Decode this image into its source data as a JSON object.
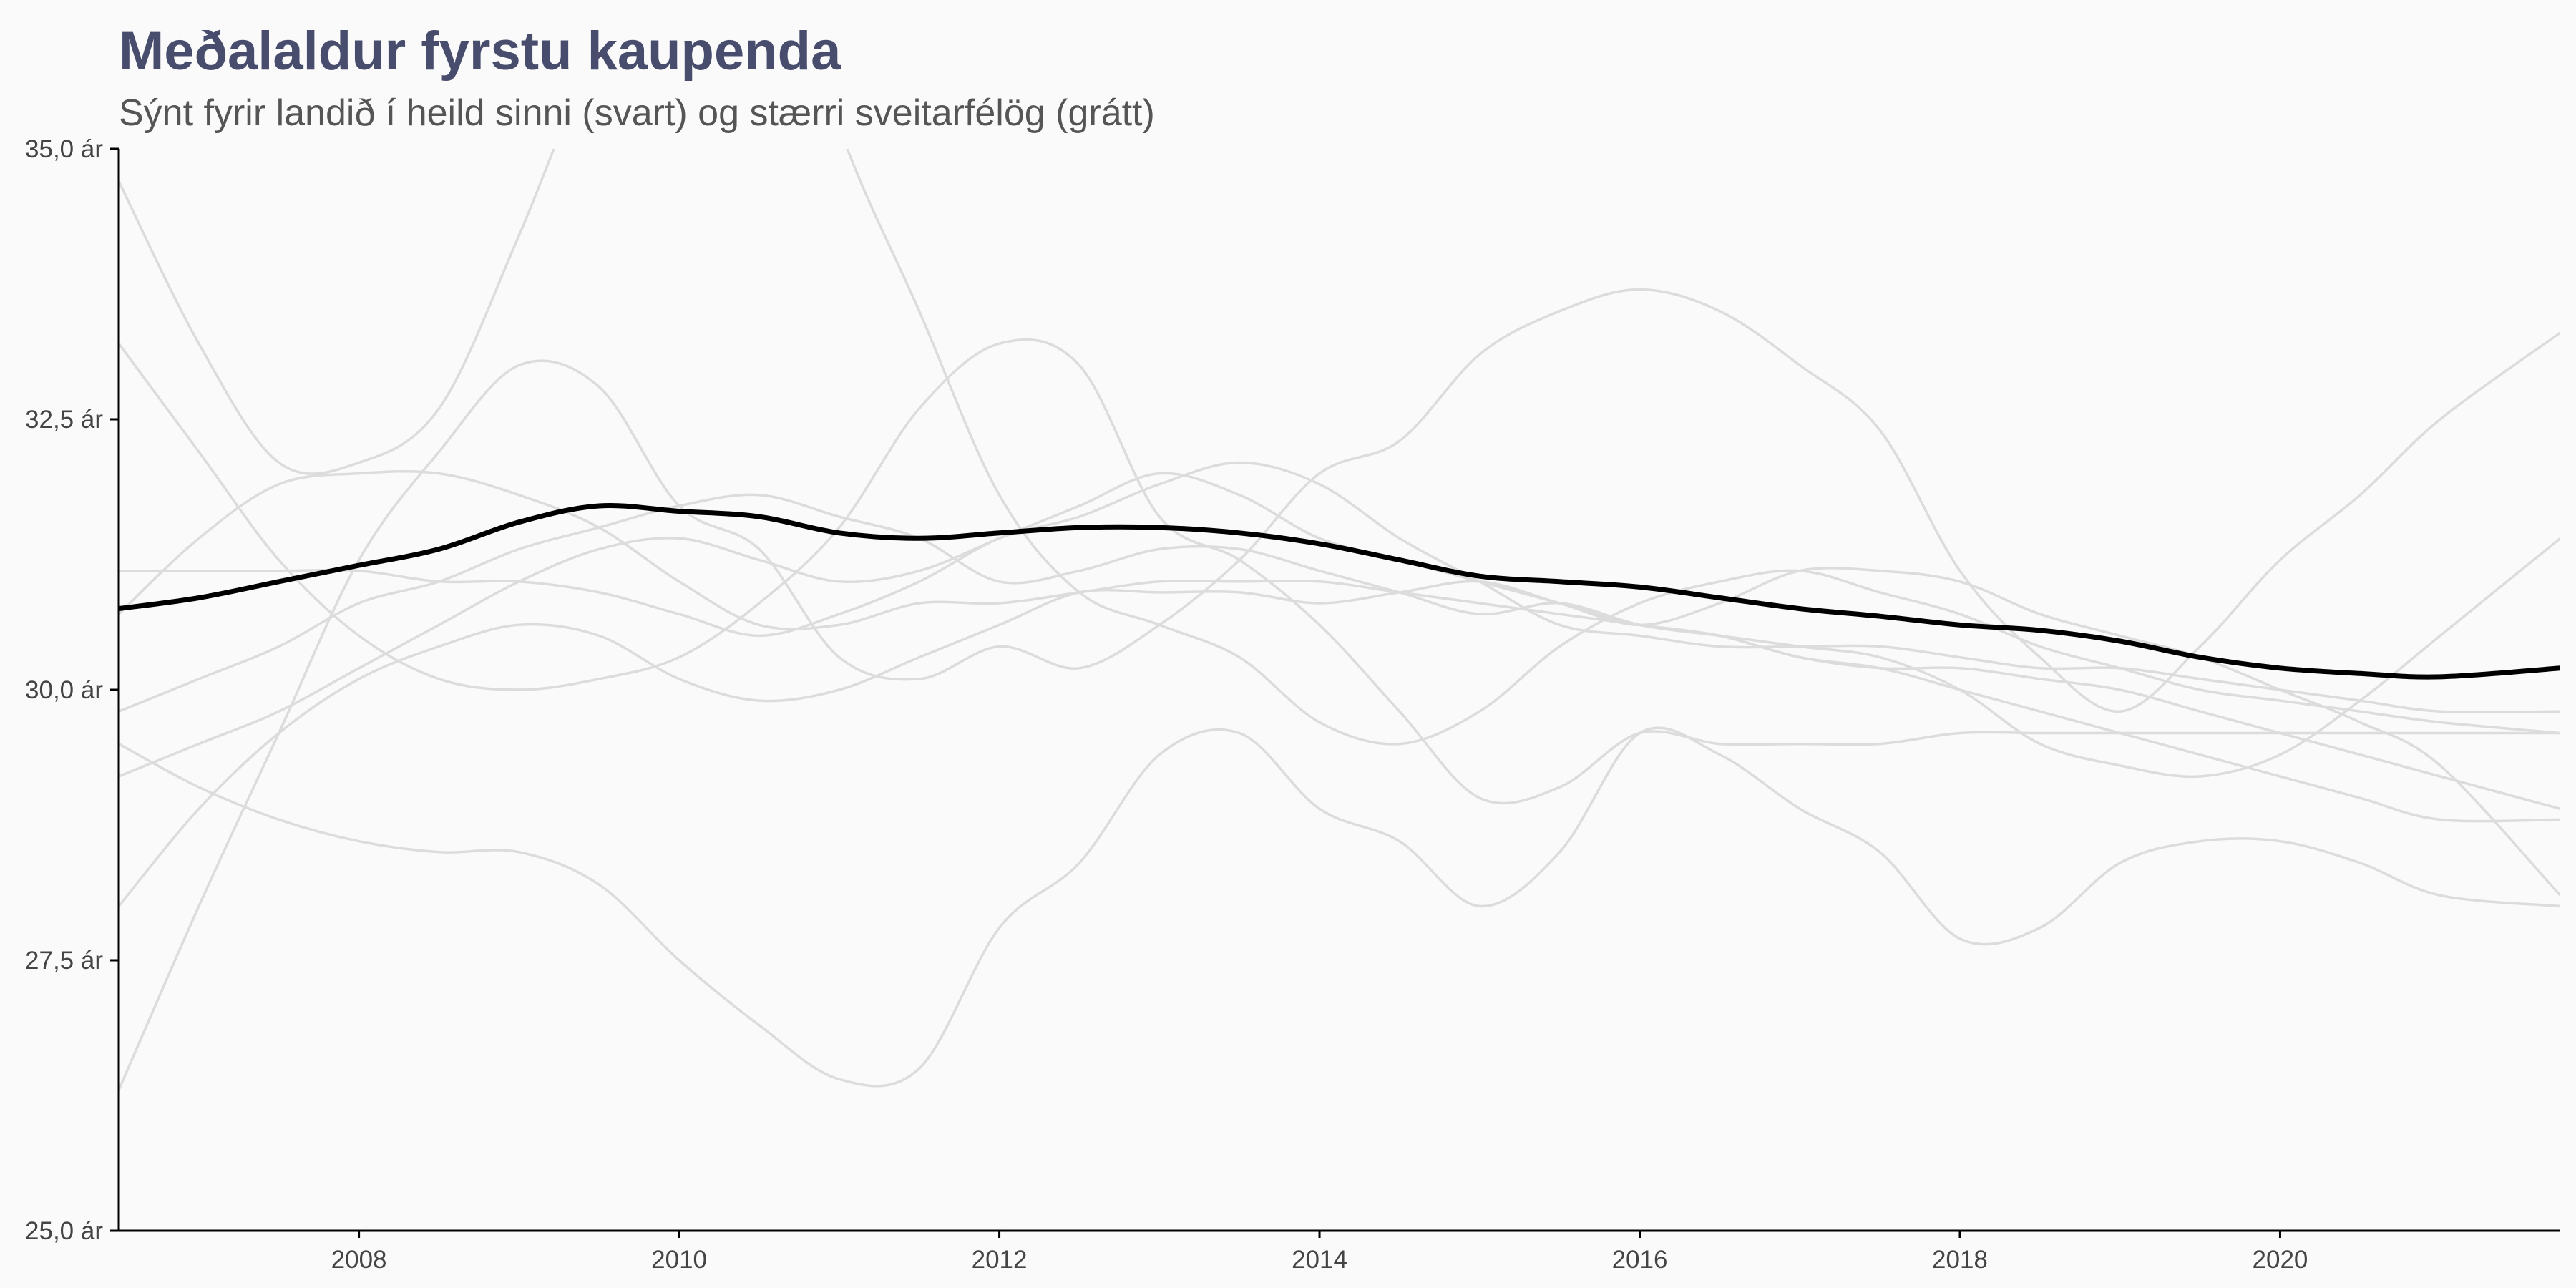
{
  "chart_data": {
    "type": "line",
    "title": "Meðalaldur fyrstu kaupenda",
    "subtitle": "Sýnt fyrir landið í heild sinni (svart) og stærri sveitarfélög (grátt)",
    "xlabel": "",
    "ylabel": "",
    "xlim": [
      2006.5,
      2021.75
    ],
    "ylim": [
      25.0,
      35.0
    ],
    "x_ticks": [
      2008,
      2010,
      2012,
      2014,
      2016,
      2018,
      2020
    ],
    "x_tick_labels": [
      "2008",
      "2010",
      "2012",
      "2014",
      "2016",
      "2018",
      "2020"
    ],
    "y_ticks": [
      25.0,
      27.5,
      30.0,
      32.5,
      35.0
    ],
    "y_tick_labels": [
      "25,0 ár",
      "27,5 ár",
      "30,0 ár",
      "32,5 ár",
      "35,0 ár"
    ],
    "grid": false,
    "colors": {
      "national": "#000000",
      "municipalities": "#dcdcdc",
      "title": "#484D6D",
      "subtitle": "#555555",
      "background": "#fafafa"
    },
    "national": {
      "x": [
        2006.5,
        2007,
        2007.5,
        2008,
        2008.5,
        2009,
        2009.5,
        2010,
        2010.5,
        2011,
        2011.5,
        2012,
        2012.5,
        2013,
        2013.5,
        2014,
        2014.5,
        2015,
        2015.5,
        2016,
        2016.5,
        2017,
        2017.5,
        2018,
        2018.5,
        2019,
        2019.5,
        2020,
        2020.5,
        2021,
        2021.75
      ],
      "y": [
        30.75,
        30.85,
        31.0,
        31.15,
        31.3,
        31.55,
        31.7,
        31.65,
        31.6,
        31.45,
        31.4,
        31.45,
        31.5,
        31.5,
        31.45,
        31.35,
        31.2,
        31.05,
        31.0,
        30.95,
        30.85,
        30.75,
        30.68,
        30.6,
        30.55,
        30.45,
        30.3,
        30.2,
        30.15,
        30.12,
        30.2
      ]
    },
    "municipalities": [
      {
        "x": [
          2006.5,
          2007,
          2007.5,
          2008,
          2008.5,
          2009,
          2009.5,
          2010,
          2010.5,
          2011,
          2011.5,
          2012,
          2012.5,
          2013,
          2013.5,
          2014,
          2014.5,
          2015,
          2015.5,
          2016,
          2016.5,
          2017,
          2017.5,
          2018,
          2018.5,
          2019,
          2019.5,
          2020,
          2020.5,
          2021,
          2021.75
        ],
        "y": [
          34.7,
          33.2,
          32.1,
          32.1,
          32.6,
          34.2,
          36.0,
          37.2,
          37.6,
          35.2,
          33.5,
          31.8,
          30.9,
          30.6,
          30.3,
          29.7,
          29.5,
          29.8,
          30.4,
          30.8,
          31.0,
          31.1,
          30.9,
          30.7,
          30.4,
          30.2,
          30.0,
          29.9,
          29.8,
          29.7,
          29.6
        ]
      },
      {
        "x": [
          2006.5,
          2007,
          2007.5,
          2008,
          2008.5,
          2009,
          2009.5,
          2010,
          2010.5,
          2011,
          2011.5,
          2012,
          2012.5,
          2013,
          2013.5,
          2014,
          2014.5,
          2015,
          2015.5,
          2016,
          2016.5,
          2017,
          2017.5,
          2018,
          2018.5,
          2019,
          2019.5,
          2020,
          2020.5,
          2021,
          2021.75
        ],
        "y": [
          26.3,
          28.0,
          29.6,
          31.2,
          32.2,
          33.0,
          32.8,
          31.7,
          31.3,
          30.3,
          30.1,
          30.4,
          30.2,
          30.6,
          31.2,
          32.0,
          32.3,
          33.1,
          33.5,
          33.7,
          33.5,
          33.0,
          32.4,
          31.1,
          30.3,
          29.8,
          30.4,
          31.2,
          31.8,
          32.5,
          33.3
        ]
      },
      {
        "x": [
          2006.5,
          2007,
          2007.5,
          2008,
          2008.5,
          2009,
          2009.5,
          2010,
          2010.5,
          2011,
          2011.5,
          2012,
          2012.5,
          2013,
          2013.5,
          2014,
          2014.5,
          2015,
          2015.5,
          2016,
          2016.5,
          2017,
          2017.5,
          2018,
          2018.5,
          2019,
          2019.5,
          2020,
          2020.5,
          2021,
          2021.75
        ],
        "y": [
          33.2,
          32.2,
          31.2,
          30.5,
          30.1,
          30.0,
          30.1,
          30.3,
          30.8,
          31.5,
          32.6,
          33.2,
          33.0,
          31.6,
          31.2,
          30.6,
          29.8,
          29.0,
          29.1,
          29.6,
          29.5,
          29.5,
          29.5,
          29.6,
          29.6,
          29.6,
          29.6,
          29.6,
          29.6,
          29.6,
          29.6
        ]
      },
      {
        "x": [
          2006.5,
          2007,
          2007.5,
          2008,
          2008.5,
          2009,
          2009.5,
          2010,
          2010.5,
          2011,
          2011.5,
          2012,
          2012.5,
          2013,
          2013.5,
          2014,
          2014.5,
          2015,
          2015.5,
          2016,
          2016.5,
          2017,
          2017.5,
          2018,
          2018.5,
          2019,
          2019.5,
          2020,
          2020.5,
          2021,
          2021.75
        ],
        "y": [
          29.5,
          29.1,
          28.8,
          28.6,
          28.5,
          28.5,
          28.2,
          27.5,
          26.9,
          26.4,
          26.5,
          27.8,
          28.4,
          29.4,
          29.6,
          28.9,
          28.6,
          28.0,
          28.5,
          29.6,
          29.4,
          28.9,
          28.5,
          27.7,
          27.8,
          28.4,
          28.6,
          28.6,
          28.4,
          28.1,
          28.0
        ]
      },
      {
        "x": [
          2006.5,
          2007,
          2007.5,
          2008,
          2008.5,
          2009,
          2009.5,
          2010,
          2010.5,
          2011,
          2011.5,
          2012,
          2012.5,
          2013,
          2013.5,
          2014,
          2014.5,
          2015,
          2015.5,
          2016,
          2016.5,
          2017,
          2017.5,
          2018,
          2018.5,
          2019,
          2019.5,
          2020,
          2020.5,
          2021,
          2021.75
        ],
        "y": [
          31.1,
          31.1,
          31.1,
          31.1,
          31.0,
          31.0,
          30.9,
          30.7,
          30.5,
          30.7,
          31.0,
          31.4,
          31.6,
          31.9,
          32.1,
          31.9,
          31.4,
          31.0,
          30.6,
          30.5,
          30.4,
          30.4,
          30.4,
          30.3,
          30.2,
          30.2,
          30.1,
          30.0,
          29.9,
          29.8,
          29.8
        ]
      },
      {
        "x": [
          2006.5,
          2007,
          2007.5,
          2008,
          2008.5,
          2009,
          2009.5,
          2010,
          2010.5,
          2011,
          2011.5,
          2012,
          2012.5,
          2013,
          2013.5,
          2014,
          2014.5,
          2015,
          2015.5,
          2016,
          2016.5,
          2017,
          2017.5,
          2018,
          2018.5,
          2019,
          2019.5,
          2020,
          2020.5,
          2021,
          2021.75
        ],
        "y": [
          30.7,
          31.4,
          31.9,
          32.0,
          32.0,
          31.8,
          31.5,
          31.0,
          30.6,
          30.6,
          30.8,
          30.8,
          30.9,
          31.0,
          31.0,
          31.0,
          30.9,
          30.8,
          30.7,
          30.6,
          30.5,
          30.3,
          30.2,
          30.0,
          29.8,
          29.6,
          29.4,
          29.2,
          29.0,
          28.8,
          28.8
        ]
      },
      {
        "x": [
          2006.5,
          2007,
          2007.5,
          2008,
          2008.5,
          2009,
          2009.5,
          2010,
          2010.5,
          2011,
          2011.5,
          2012,
          2012.5,
          2013,
          2013.5,
          2014,
          2014.5,
          2015,
          2015.5,
          2016,
          2016.5,
          2017,
          2017.5,
          2018,
          2018.5,
          2019,
          2019.5,
          2020,
          2020.5,
          2021,
          2021.75
        ],
        "y": [
          29.8,
          30.1,
          30.4,
          30.8,
          31.0,
          31.3,
          31.5,
          31.7,
          31.8,
          31.6,
          31.4,
          31.0,
          31.1,
          31.3,
          31.3,
          31.1,
          30.9,
          30.7,
          30.8,
          30.6,
          30.5,
          30.3,
          30.2,
          30.2,
          30.1,
          30.0,
          29.8,
          29.6,
          29.4,
          29.2,
          28.9
        ]
      },
      {
        "x": [
          2006.5,
          2007,
          2007.5,
          2008,
          2008.5,
          2009,
          2009.5,
          2010,
          2010.5,
          2011,
          2011.5,
          2012,
          2012.5,
          2013,
          2013.5,
          2014,
          2014.5,
          2015,
          2015.5,
          2016,
          2016.5,
          2017,
          2017.5,
          2018,
          2018.5,
          2019,
          2019.5,
          2020,
          2020.5,
          2021,
          2021.75
        ],
        "y": [
          28.0,
          28.9,
          29.6,
          30.1,
          30.4,
          30.6,
          30.5,
          30.1,
          29.9,
          30.0,
          30.3,
          30.6,
          30.9,
          30.9,
          30.9,
          30.8,
          30.9,
          31.0,
          30.8,
          30.6,
          30.5,
          30.4,
          30.3,
          30.0,
          29.5,
          29.3,
          29.2,
          29.4,
          29.9,
          30.5,
          31.4
        ]
      },
      {
        "x": [
          2006.5,
          2007,
          2007.5,
          2008,
          2008.5,
          2009,
          2009.5,
          2010,
          2010.5,
          2011,
          2011.5,
          2012,
          2012.5,
          2013,
          2013.5,
          2014,
          2014.5,
          2015,
          2015.5,
          2016,
          2016.5,
          2017,
          2017.5,
          2018,
          2018.5,
          2019,
          2019.5,
          2020,
          2020.5,
          2021,
          2021.75
        ],
        "y": [
          29.2,
          29.5,
          29.8,
          30.2,
          30.6,
          31.0,
          31.3,
          31.4,
          31.2,
          31.0,
          31.1,
          31.4,
          31.7,
          32.0,
          31.8,
          31.4,
          31.2,
          31.0,
          30.8,
          30.6,
          30.8,
          31.1,
          31.1,
          31.0,
          30.7,
          30.5,
          30.3,
          30.0,
          29.7,
          29.3,
          28.1
        ]
      }
    ]
  }
}
